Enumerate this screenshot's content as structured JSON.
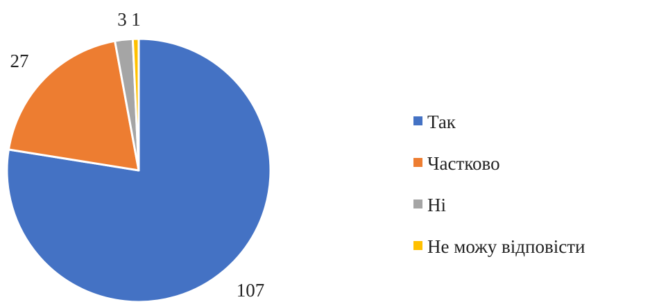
{
  "chart_data": {
    "type": "pie",
    "categories": [
      "Так",
      "Частково",
      "Ні",
      "Не можу відповісти"
    ],
    "values": [
      107,
      27,
      3,
      1
    ],
    "data_labels": [
      "107",
      "27",
      "3",
      "1"
    ],
    "colors": [
      "#4472C4",
      "#ED7D31",
      "#A5A5A5",
      "#FFC000"
    ],
    "legend": {
      "position": "right",
      "items": [
        "Так",
        "Частково",
        "Ні",
        "Не можу відповісти"
      ]
    }
  }
}
